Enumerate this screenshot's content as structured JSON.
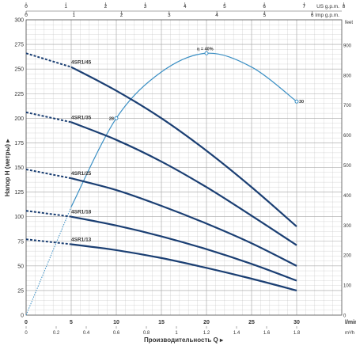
{
  "chart_data": {
    "type": "line",
    "xlabel": "Производительность Q",
    "ylabel": "Напор H (метры)",
    "x_unit": "l/min",
    "x_unit_m3h": "m³/h",
    "y_right_unit": "feet",
    "top_axes": [
      {
        "unit": "US g.p.m.",
        "ticks": [
          "0",
          "1",
          "2",
          "3",
          "4",
          "5",
          "6",
          "7",
          "8"
        ]
      },
      {
        "unit": "Imp g.p.m.",
        "ticks": [
          "0",
          "1",
          "2",
          "3",
          "4",
          "5",
          "6",
          "7"
        ]
      }
    ],
    "xlim": [
      0,
      35
    ],
    "ylim": [
      0,
      300
    ],
    "x_ticks": [
      "0",
      "5",
      "10",
      "15",
      "20",
      "25",
      "30"
    ],
    "x_ticks_m3h": [
      "0",
      "0.2",
      "0.4",
      "0.6",
      "0.8",
      "1",
      "1.2",
      "1.4",
      "1.6",
      "1.8"
    ],
    "y_ticks": [
      "0",
      "25",
      "50",
      "75",
      "100",
      "125",
      "150",
      "175",
      "200",
      "225",
      "250",
      "275",
      "300"
    ],
    "y_right_ticks": [
      "0",
      "100",
      "200",
      "300",
      "400",
      "500",
      "600",
      "700",
      "800",
      "900"
    ],
    "grid": true,
    "series": [
      {
        "name": "4SR1/45",
        "dashed_x": [
          0,
          5
        ],
        "dashed_y": [
          266,
          252
        ],
        "x": [
          5,
          10,
          15,
          20,
          25,
          30
        ],
        "y": [
          252,
          228,
          200,
          167,
          130,
          90
        ]
      },
      {
        "name": "4SR1/35",
        "dashed_x": [
          0,
          5
        ],
        "dashed_y": [
          206,
          196
        ],
        "x": [
          5,
          10,
          15,
          20,
          25,
          30
        ],
        "y": [
          196,
          178,
          156,
          130,
          101,
          71
        ]
      },
      {
        "name": "4SR1/25",
        "dashed_x": [
          0,
          5
        ],
        "dashed_y": [
          148,
          139
        ],
        "x": [
          5,
          10,
          15,
          20,
          25,
          30
        ],
        "y": [
          139,
          127,
          111,
          93,
          73,
          50
        ]
      },
      {
        "name": "4SR1/18",
        "dashed_x": [
          0,
          5
        ],
        "dashed_y": [
          106,
          100
        ],
        "x": [
          5,
          10,
          15,
          20,
          25,
          30
        ],
        "y": [
          100,
          91,
          80,
          67,
          52,
          35
        ]
      },
      {
        "name": "4SR1/13",
        "dashed_x": [
          0,
          5
        ],
        "dashed_y": [
          77,
          72
        ],
        "x": [
          5,
          10,
          15,
          20,
          25,
          30
        ],
        "y": [
          72,
          66,
          58,
          48,
          37,
          25
        ]
      }
    ],
    "efficiency": {
      "label": "η = 40%",
      "x": [
        0,
        5,
        10,
        15,
        20,
        25,
        30
      ],
      "y": [
        0,
        110,
        200,
        247,
        266,
        252,
        217
      ],
      "markers": [
        {
          "x": 10,
          "y": 200,
          "label": "28"
        },
        {
          "x": 20,
          "y": 266,
          "label": "η = 40%"
        },
        {
          "x": 30,
          "y": 217,
          "label": "30"
        }
      ]
    },
    "colors": {
      "curve": "#1b3f73",
      "efficiency": "#3a8fc4",
      "grid": "#c9c9c9"
    }
  }
}
